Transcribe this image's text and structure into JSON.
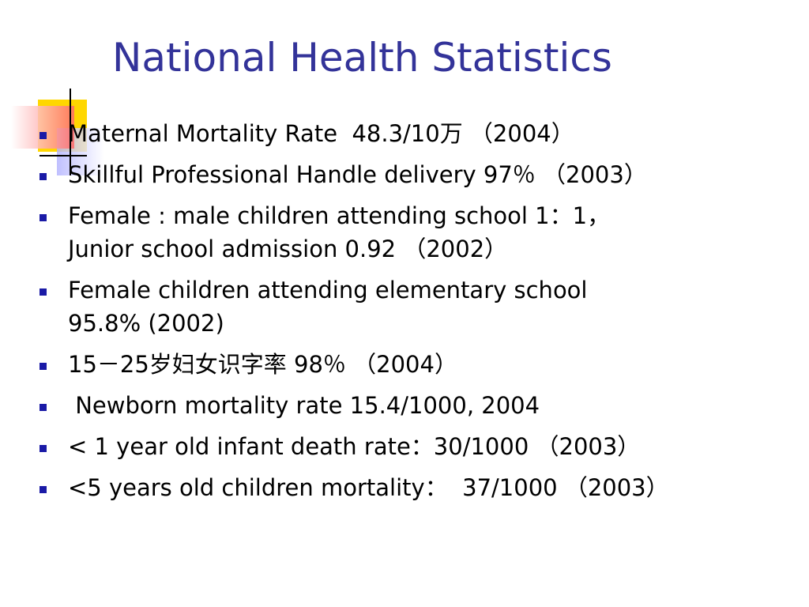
{
  "title": "National Health Statistics",
  "bullets": [
    [
      "Maternal Mortality Rate  48.3/10万 （2004）"
    ],
    [
      "Skillful Professional Handle delivery 97％ （2003）"
    ],
    [
      "Female : male children attending school 1：1，",
      "Junior school admission 0.92 （2002）"
    ],
    [
      "Female children attending elementary school",
      "95.8% (2002)"
    ],
    [
      "15－25岁妇女识字率 98％ （2004）"
    ],
    [
      " Newborn mortality rate 15.4/1000, 2004"
    ],
    [
      "< 1 year old infant death rate：30/1000 （2003）"
    ],
    [
      "<5 years old children mortality：  37/1000 （2003）"
    ]
  ]
}
